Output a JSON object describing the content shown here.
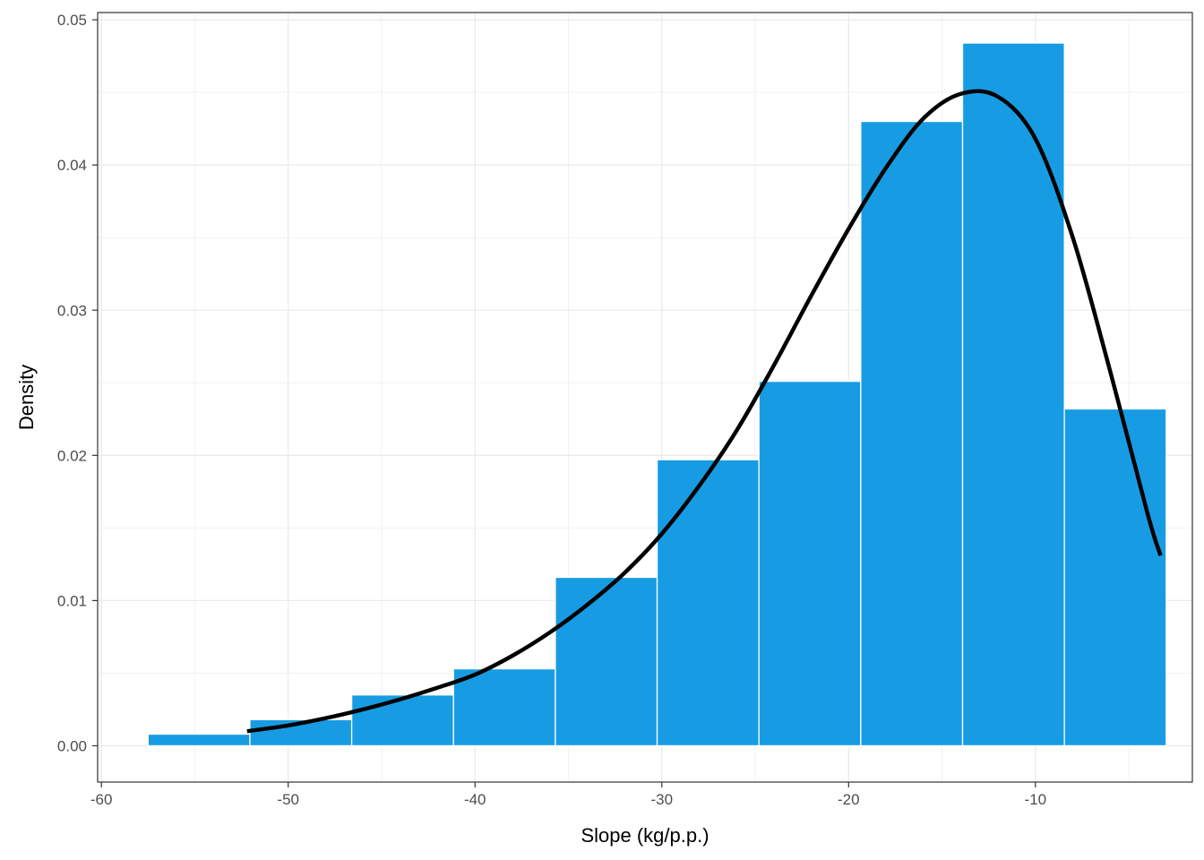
{
  "chart_data": {
    "type": "bar",
    "xlabel": "Slope (kg/p.p.)",
    "ylabel": "Density",
    "xlim": [
      -60.2,
      -1.6
    ],
    "ylim": [
      -0.0025,
      0.0505
    ],
    "x_ticks": [
      -60,
      -50,
      -40,
      -30,
      -20,
      -10
    ],
    "x_tick_labels": [
      "-60",
      "-50",
      "-40",
      "-30",
      "-20",
      "-10"
    ],
    "y_ticks": [
      0.0,
      0.01,
      0.02,
      0.03,
      0.04,
      0.05
    ],
    "y_tick_labels": [
      "0.00",
      "0.01",
      "0.02",
      "0.03",
      "0.04",
      "0.05"
    ],
    "grid": true,
    "bin_width": 5.45,
    "bars": [
      {
        "x_start": -57.5,
        "x_end": -52.05,
        "density": 0.0008
      },
      {
        "x_start": -52.05,
        "x_end": -46.6,
        "density": 0.0018
      },
      {
        "x_start": -46.6,
        "x_end": -41.15,
        "density": 0.0035
      },
      {
        "x_start": -41.15,
        "x_end": -35.7,
        "density": 0.0053
      },
      {
        "x_start": -35.7,
        "x_end": -30.25,
        "density": 0.0116
      },
      {
        "x_start": -30.25,
        "x_end": -24.8,
        "density": 0.0197
      },
      {
        "x_start": -24.8,
        "x_end": -19.35,
        "density": 0.0251
      },
      {
        "x_start": -19.35,
        "x_end": -13.9,
        "density": 0.043
      },
      {
        "x_start": -13.9,
        "x_end": -8.45,
        "density": 0.0484
      },
      {
        "x_start": -8.45,
        "x_end": -3.0,
        "density": 0.0232
      }
    ],
    "bar_color": "#179CE3",
    "bar_border_color": "#ffffff",
    "density_curve": {
      "color": "#000000",
      "x": [
        -52.2,
        -50,
        -48,
        -46,
        -44,
        -42,
        -40,
        -38,
        -36,
        -34,
        -32,
        -30,
        -28,
        -26,
        -24,
        -22,
        -20,
        -18,
        -16,
        -14,
        -12,
        -10,
        -8,
        -6,
        -4,
        -3.3
      ],
      "y": [
        0.001,
        0.0014,
        0.0019,
        0.0025,
        0.0032,
        0.004,
        0.0049,
        0.0062,
        0.0078,
        0.0097,
        0.0119,
        0.0146,
        0.0179,
        0.0217,
        0.0262,
        0.031,
        0.0356,
        0.0398,
        0.0432,
        0.0449,
        0.0447,
        0.0418,
        0.035,
        0.0258,
        0.016,
        0.0131
      ]
    }
  }
}
